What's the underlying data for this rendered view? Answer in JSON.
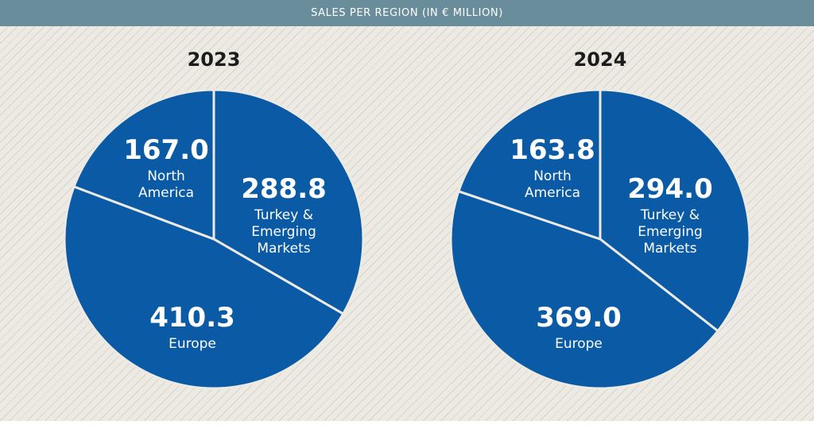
{
  "header": {
    "title": "SALES PER REGION (IN € MILLION)"
  },
  "chart_data": [
    {
      "type": "pie",
      "title": "2023",
      "slices": [
        {
          "label": "Turkey & Emerging Markets",
          "label_lines": [
            "Turkey &",
            "Emerging",
            "Markets"
          ],
          "value": 288.8,
          "display": "288.8"
        },
        {
          "label": "Europe",
          "label_lines": [
            "Europe"
          ],
          "value": 410.3,
          "display": "410.3"
        },
        {
          "label": "North America",
          "label_lines": [
            "North",
            "America"
          ],
          "value": 167.0,
          "display": "167.0"
        }
      ]
    },
    {
      "type": "pie",
      "title": "2024",
      "slices": [
        {
          "label": "Turkey & Emerging Markets",
          "label_lines": [
            "Turkey &",
            "Emerging",
            "Markets"
          ],
          "value": 294.0,
          "display": "294.0"
        },
        {
          "label": "Europe",
          "label_lines": [
            "Europe"
          ],
          "value": 369.0,
          "display": "369.0"
        },
        {
          "label": "North America",
          "label_lines": [
            "North",
            "America"
          ],
          "value": 163.8,
          "display": "163.8"
        }
      ]
    }
  ],
  "colors": {
    "slice_fill": "#0a5aa6",
    "slice_stroke": "#eceae3",
    "header_bg": "#6a8d9c",
    "text_on_slice": "#ffffff"
  }
}
